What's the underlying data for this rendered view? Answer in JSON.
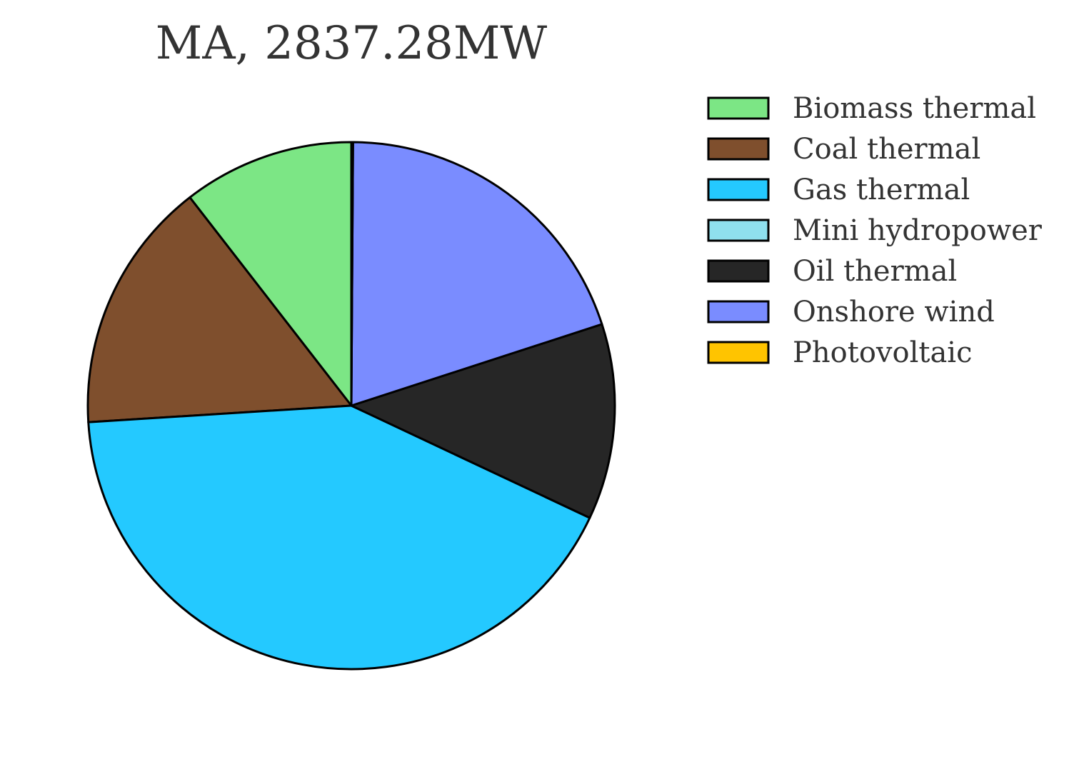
{
  "chart_data": {
    "type": "pie",
    "title": "MA, 2837.28MW",
    "legend_position": "right",
    "start_angle_deg": 90,
    "direction": "counterclockwise",
    "slices": [
      {
        "label": "Biomass thermal",
        "value": 10.5,
        "color": "#7ce685"
      },
      {
        "label": "Coal thermal",
        "value": 15.5,
        "color": "#7f4f2d"
      },
      {
        "label": "Gas thermal",
        "value": 42.0,
        "color": "#24c9ff"
      },
      {
        "label": "Mini hydropower",
        "value": 0.0,
        "color": "#8fe0ee"
      },
      {
        "label": "Oil thermal",
        "value": 12.0,
        "color": "#262626"
      },
      {
        "label": "Onshore wind",
        "value": 19.9,
        "color": "#7a8cff"
      },
      {
        "label": "Photovoltaic",
        "value": 0.1,
        "color": "#ffc400"
      }
    ]
  }
}
